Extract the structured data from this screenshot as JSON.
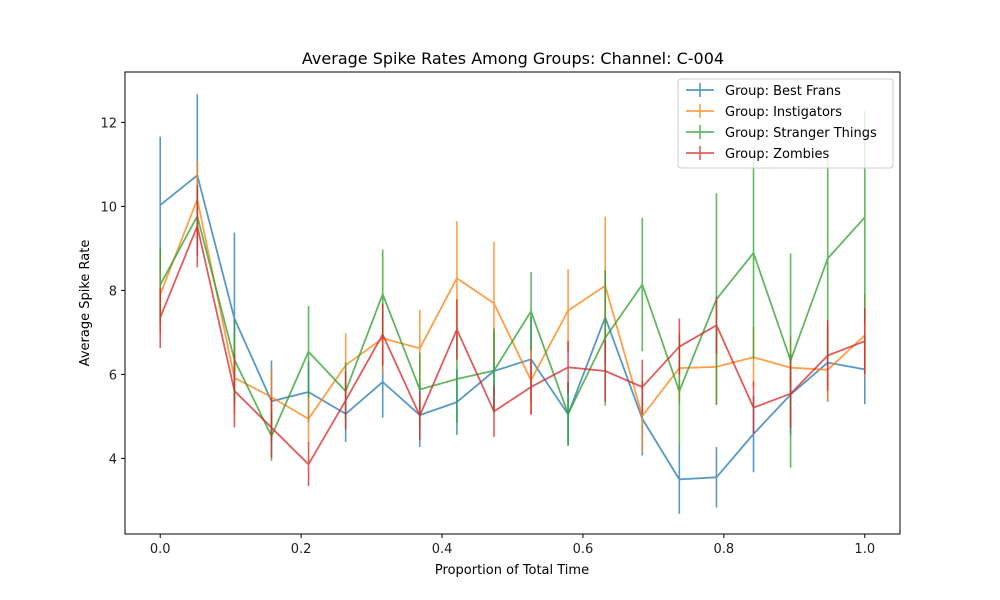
{
  "chart_data": {
    "type": "line",
    "title": "Average Spike Rates Among Groups: Channel: C-004",
    "xlabel": "Proportion of Total Time",
    "ylabel": "Average Spike Rate",
    "xlim": [
      -0.05,
      1.05
    ],
    "ylim": [
      2.2,
      13.2
    ],
    "xticks": [
      0.0,
      0.2,
      0.4,
      0.6,
      0.8,
      1.0
    ],
    "xtick_labels": [
      "0.0",
      "0.2",
      "0.4",
      "0.6",
      "0.8",
      "1.0"
    ],
    "yticks": [
      4,
      6,
      8,
      10,
      12
    ],
    "ytick_labels": [
      "4",
      "6",
      "8",
      "10",
      "12"
    ],
    "grid": false,
    "legend_position": "top-right",
    "x": [
      0.0,
      0.0526,
      0.1053,
      0.1579,
      0.2105,
      0.2632,
      0.3158,
      0.3684,
      0.4211,
      0.4737,
      0.5263,
      0.5789,
      0.6316,
      0.6842,
      0.7368,
      0.7895,
      0.8421,
      0.8947,
      0.9474,
      1.0
    ],
    "series": [
      {
        "name": "Group: Best Frans",
        "color": "#1f77b4",
        "values": [
          10.03,
          10.74,
          7.33,
          5.36,
          5.58,
          5.06,
          5.82,
          5.03,
          5.34,
          6.08,
          6.36,
          5.05,
          7.36,
          4.94,
          3.5,
          3.55,
          4.58,
          5.52,
          6.28,
          6.12
        ],
        "errors": [
          1.63,
          1.93,
          2.05,
          0.97,
          0.73,
          0.67,
          0.85,
          0.76,
          0.78,
          0.93,
          1.01,
          0.75,
          1.09,
          0.87,
          0.82,
          0.72,
          0.91,
          0.95,
          0.93,
          0.83
        ]
      },
      {
        "name": "Group: Instigators",
        "color": "#ff7f0e",
        "values": [
          7.9,
          10.17,
          5.92,
          5.46,
          4.94,
          6.22,
          6.86,
          6.62,
          8.29,
          7.69,
          5.86,
          7.52,
          8.11,
          5.01,
          6.15,
          6.18,
          6.41,
          6.16,
          6.11,
          6.93
        ],
        "errors": [
          0.93,
          0.9,
          0.88,
          0.65,
          0.59,
          0.76,
          0.82,
          0.92,
          1.36,
          1.47,
          0.81,
          0.99,
          1.64,
          0.85,
          0.84,
          0.91,
          0.72,
          0.74,
          0.73,
          0.98
        ]
      },
      {
        "name": "Group: Stranger Things",
        "color": "#2ca02c",
        "values": [
          8.13,
          9.77,
          6.35,
          4.53,
          6.54,
          5.6,
          7.91,
          5.64,
          5.89,
          6.09,
          7.5,
          5.06,
          6.87,
          8.14,
          5.6,
          7.79,
          8.89,
          6.33,
          8.76,
          9.74
        ],
        "errors": [
          0.89,
          0.66,
          0.96,
          0.59,
          1.09,
          0.69,
          1.06,
          0.88,
          1.04,
          1.01,
          0.94,
          0.75,
          1.61,
          1.59,
          1.3,
          2.52,
          2.53,
          2.55,
          2.54,
          2.53
        ]
      },
      {
        "name": "Group: Zombies",
        "color": "#d62728",
        "values": [
          7.35,
          9.53,
          5.61,
          4.73,
          3.86,
          5.38,
          6.95,
          5.02,
          7.07,
          5.12,
          5.7,
          6.17,
          6.08,
          5.7,
          6.66,
          7.17,
          5.21,
          5.54,
          6.45,
          6.79
        ],
        "errors": [
          0.72,
          0.98,
          0.87,
          0.71,
          0.52,
          0.69,
          0.74,
          0.58,
          0.72,
          0.61,
          0.66,
          0.63,
          0.73,
          0.65,
          0.67,
          0.68,
          0.62,
          0.81,
          0.84,
          0.78
        ]
      }
    ]
  }
}
